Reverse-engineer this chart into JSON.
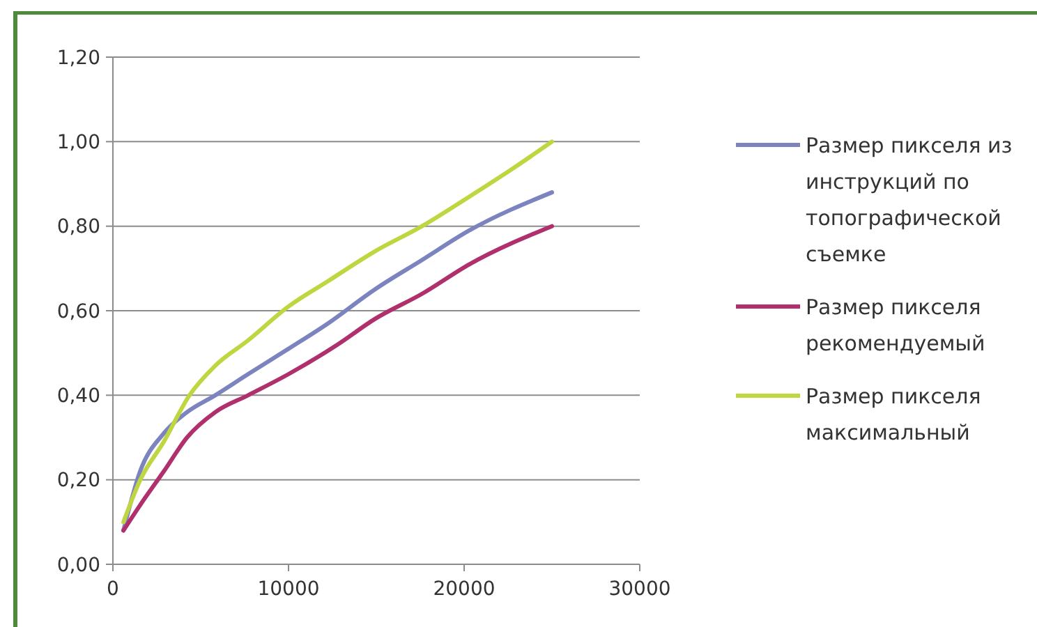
{
  "chart_data": {
    "type": "line",
    "xlim": [
      0,
      30000
    ],
    "xticks": [
      0,
      10000,
      20000,
      30000
    ],
    "ylim": [
      0,
      1.2
    ],
    "yticks": [
      {
        "value": 0,
        "label": "0,00"
      },
      {
        "value": 0.2,
        "label": "0,20"
      },
      {
        "value": 0.4,
        "label": "0,40"
      },
      {
        "value": 0.6,
        "label": "0,60"
      },
      {
        "value": 0.8,
        "label": "0,80"
      },
      {
        "value": 1,
        "label": "1,00"
      },
      {
        "value": 1.2,
        "label": "1,20"
      }
    ],
    "grid": "y",
    "legend": "right",
    "marker": "none",
    "series": [
      {
        "name": "Размер пикселя из инструкций по топографической съемке",
        "color": "#7b84bf",
        "x": [
          600,
          1550,
          2900,
          4220,
          5830,
          7700,
          10000,
          12250,
          14900,
          17600,
          20300,
          25000
        ],
        "values": [
          0.08,
          0.22,
          0.31,
          0.36,
          0.4,
          0.45,
          0.51,
          0.57,
          0.65,
          0.72,
          0.79,
          0.88
        ]
      },
      {
        "name": "Размер пикселя рекомендуемый",
        "color": "#b0306e",
        "x": [
          600,
          1550,
          2900,
          4220,
          5830,
          7700,
          10000,
          12800,
          14900,
          17600,
          20300,
          25000
        ],
        "values": [
          0.08,
          0.14,
          0.22,
          0.3,
          0.36,
          0.4,
          0.45,
          0.52,
          0.58,
          0.64,
          0.71,
          0.8
        ]
      },
      {
        "name": "Размер пикселя максимальный",
        "color": "#bfd641",
        "x": [
          600,
          1560,
          2900,
          4360,
          5830,
          7700,
          10000,
          12250,
          14900,
          17600,
          20300,
          22900,
          25000
        ],
        "values": [
          0.1,
          0.2,
          0.29,
          0.4,
          0.47,
          0.53,
          0.61,
          0.67,
          0.74,
          0.8,
          0.87,
          0.94,
          1.0
        ]
      }
    ]
  }
}
